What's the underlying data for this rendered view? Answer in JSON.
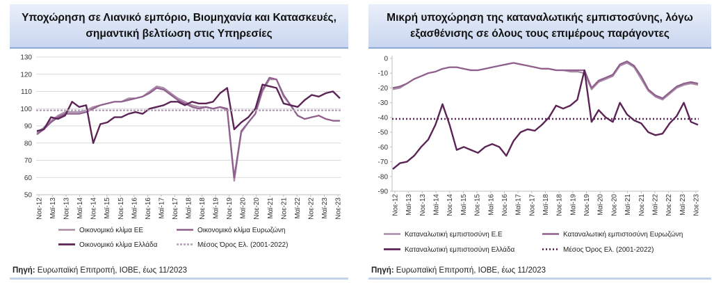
{
  "source_label": "Πηγή:",
  "source_text": " Ευρωπαϊκή Επιτροπή, ΙΟΒΕ, έως 11/2023",
  "colors": {
    "eu": "#a98ba7",
    "ez": "#8f5f8e",
    "gr": "#5b2356",
    "avg": "#b7a3b9",
    "avg_dark": "#5b2356"
  },
  "chart_data": [
    {
      "type": "line",
      "title": "Υποχώρηση σε Λιανικό εμπόριο, Βιομηχανία και Κατασκευές, σημαντική βελτίωση στις Υπηρεσίες",
      "x_tick_labels": [
        "Νοε-12",
        "Μαϊ-13",
        "Νοε-13",
        "Μαϊ-14",
        "Νοε-14",
        "Μαϊ-15",
        "Νοε-15",
        "Μαϊ-16",
        "Νοε-16",
        "Μαϊ-17",
        "Νοε-17",
        "Μαϊ-18",
        "Νοε-18",
        "Μαϊ-19",
        "Νοε-19",
        "Μαϊ-20",
        "Νοε-20",
        "Μαϊ-21",
        "Νοε-21",
        "Μαϊ-22",
        "Νοε-22",
        "Μαϊ-23",
        "Νοε-23"
      ],
      "ylim": [
        50,
        130
      ],
      "y_ticks": [
        50,
        60,
        70,
        80,
        90,
        100,
        110,
        120,
        130
      ],
      "grid": "horizontal",
      "legend_placement": "bottom",
      "series": [
        {
          "name": "Οικονομικό κλίμα ΕΕ",
          "style": "eu",
          "values": [
            86,
            89,
            93,
            96,
            98,
            98,
            98,
            99,
            101,
            102,
            103,
            104,
            104,
            106,
            106,
            107,
            110,
            113,
            112,
            109,
            106,
            104,
            102,
            101,
            101,
            100,
            101,
            99,
            58,
            86,
            92,
            97,
            110,
            117,
            117,
            107,
            102,
            96,
            94,
            95,
            96,
            94,
            93,
            93
          ]
        },
        {
          "name": "Οικονομικό κλίμα Ευρωζώνη",
          "style": "ez",
          "values": [
            85,
            88,
            92,
            95,
            97,
            97,
            97,
            98,
            100,
            102,
            103,
            104,
            104,
            105,
            106,
            107,
            109,
            112,
            111,
            108,
            105,
            103,
            101,
            100,
            101,
            100,
            101,
            100,
            60,
            87,
            92,
            97,
            111,
            118,
            117,
            108,
            102,
            96,
            94,
            95,
            96,
            94,
            93,
            93
          ]
        },
        {
          "name": "Οικονομικό κλίμα Ελλάδα",
          "style": "gr",
          "values": [
            87,
            88,
            95,
            94,
            96,
            104,
            101,
            102,
            80,
            91,
            92,
            95,
            95,
            97,
            98,
            97,
            100,
            101,
            102,
            104,
            104,
            102,
            104,
            103,
            103,
            104,
            109,
            112,
            88,
            92,
            95,
            100,
            114,
            113,
            112,
            103,
            102,
            101,
            105,
            108,
            107,
            109,
            110,
            106
          ]
        },
        {
          "name": "Μέσος Όρος Ελ. (2001-2022)",
          "style": "avg_light",
          "values": [
            99
          ]
        }
      ]
    },
    {
      "type": "line",
      "title": "Μικρή υποχώρηση της καταναλωτικής εμπιστοσύνης, λόγω εξασθένισης σε όλους τους επιμέρους παράγοντες",
      "x_tick_labels": [
        "Νοε-12",
        "Μαϊ-13",
        "Νοε-13",
        "Μαϊ-14",
        "Νοε-14",
        "Μαϊ-15",
        "Νοε-15",
        "Μαϊ-16",
        "Νοε-16",
        "Μαϊ-17",
        "Νοε-17",
        "Μαϊ-18",
        "Νοε-18",
        "Μαϊ-19",
        "Νοε-19",
        "Μαϊ-20",
        "Νοε-20",
        "Μαϊ-21",
        "Νοε-21",
        "Μαϊ-22",
        "Νοε-22",
        "Μαϊ-23",
        "Νοε-23"
      ],
      "ylim": [
        -90,
        0
      ],
      "y_ticks": [
        0,
        -10,
        -20,
        -30,
        -40,
        -50,
        -60,
        -70,
        -80,
        -90
      ],
      "grid": "none",
      "legend_placement": "bottom",
      "series": [
        {
          "name": "Καταναλωτική εμπιστοσύνη Ε.Ε",
          "style": "eu",
          "values": [
            -21,
            -20,
            -17,
            -14,
            -12,
            -10,
            -9,
            -7,
            -6,
            -6,
            -7,
            -8,
            -8,
            -7,
            -6,
            -5,
            -4,
            -3,
            -4,
            -5,
            -6,
            -7,
            -7,
            -8,
            -8,
            -9,
            -9,
            -10,
            -21,
            -16,
            -14,
            -12,
            -5,
            -3,
            -6,
            -14,
            -22,
            -26,
            -28,
            -24,
            -20,
            -18,
            -17,
            -18
          ]
        },
        {
          "name": "Καταναλωτική εμπιστοσύνη Ευρωζώνη",
          "style": "ez",
          "values": [
            -20,
            -19,
            -17,
            -14,
            -12,
            -10,
            -9,
            -7,
            -6,
            -6,
            -7,
            -8,
            -8,
            -7,
            -6,
            -5,
            -4,
            -3,
            -4,
            -5,
            -6,
            -7,
            -7,
            -8,
            -8,
            -8,
            -8,
            -8,
            -20,
            -15,
            -13,
            -11,
            -4,
            -2,
            -5,
            -12,
            -21,
            -25,
            -27,
            -23,
            -19,
            -17,
            -16,
            -17
          ]
        },
        {
          "name": "Καταναλωτική εμπιστοσύνη Ελλάδα",
          "style": "gr",
          "values": [
            -75,
            -71,
            -70,
            -66,
            -60,
            -55,
            -45,
            -31,
            -45,
            -62,
            -60,
            -62,
            -64,
            -60,
            -58,
            -60,
            -66,
            -56,
            -50,
            -48,
            -49,
            -45,
            -40,
            -32,
            -34,
            -32,
            -28,
            -8,
            -43,
            -35,
            -40,
            -43,
            -30,
            -38,
            -42,
            -44,
            -50,
            -52,
            -51,
            -44,
            -39,
            -30,
            -43,
            -45
          ]
        },
        {
          "name": "Μέσος Όρος Ελ. (2001-2022)",
          "style": "avg_dark",
          "values": [
            -41
          ]
        }
      ]
    }
  ]
}
